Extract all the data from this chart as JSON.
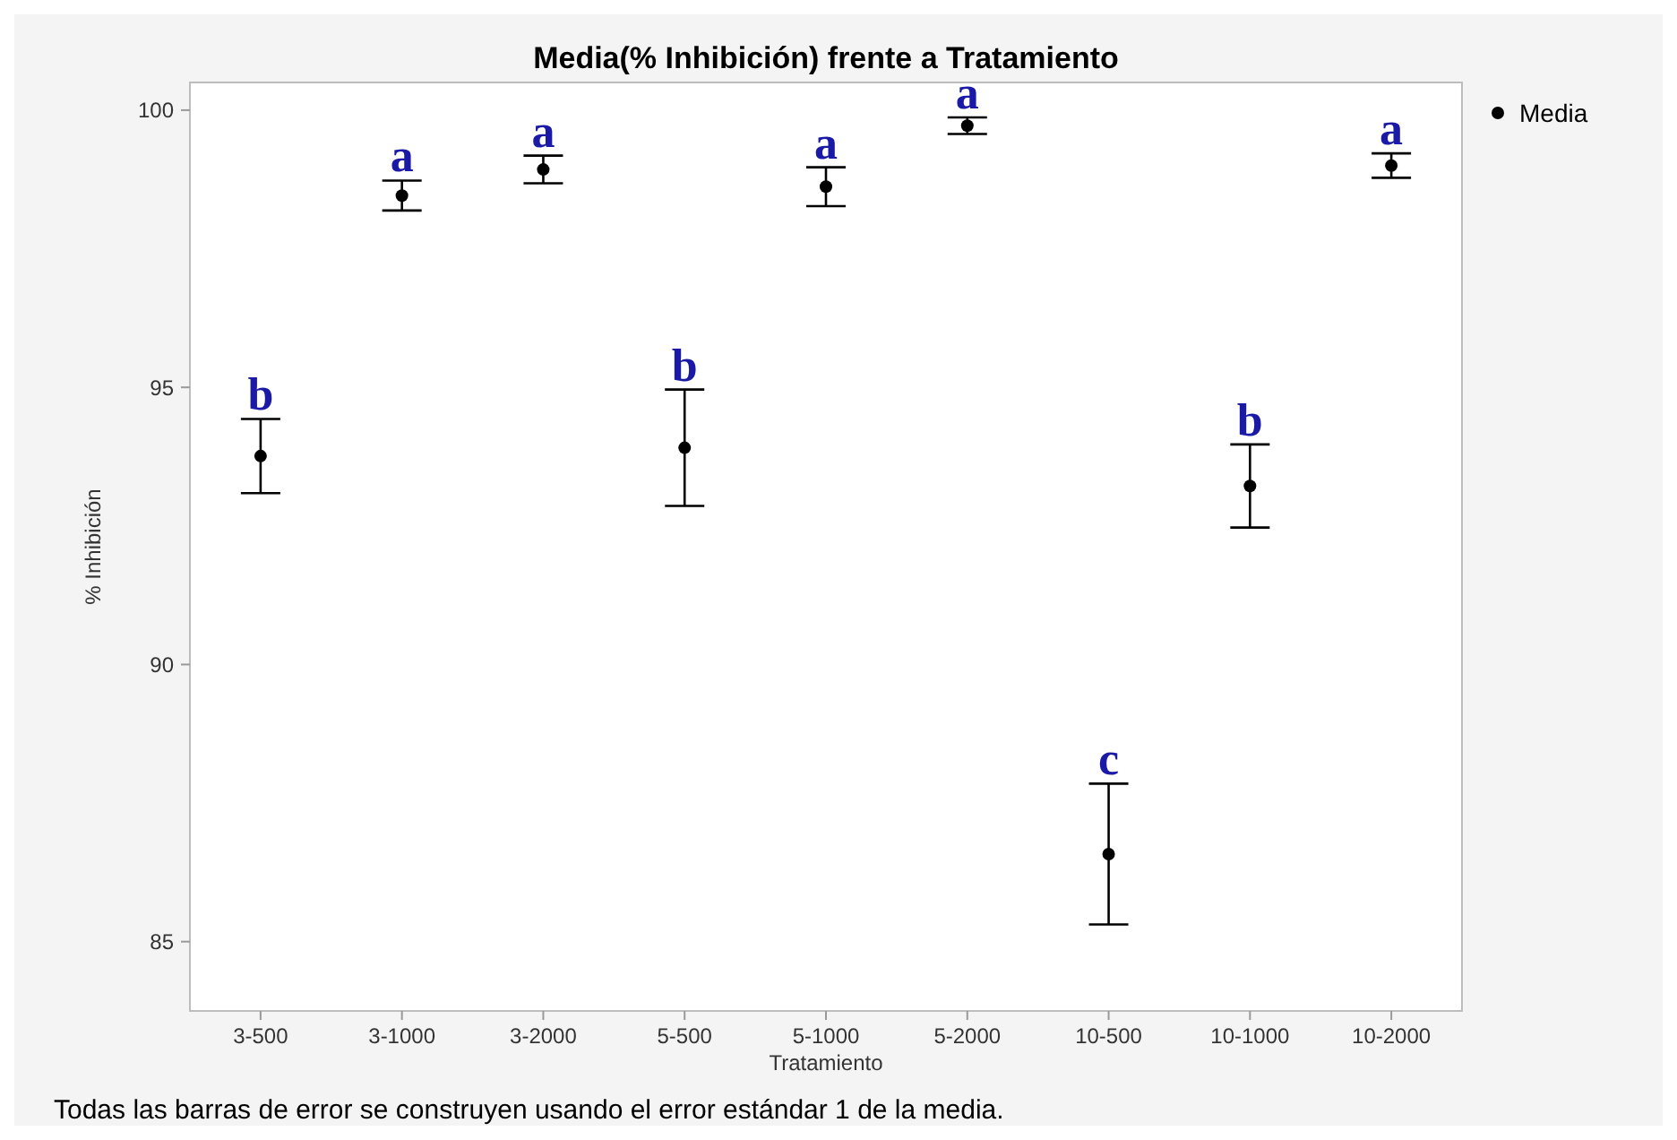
{
  "chart_data": {
    "type": "scatter",
    "title": "Media(% Inhibición) frente a Tratamiento",
    "xlabel": "Tratamiento",
    "ylabel": "% Inhibición",
    "categories": [
      "3-500",
      "3-1000",
      "3-2000",
      "5-500",
      "5-1000",
      "5-2000",
      "10-500",
      "10-1000",
      "10-2000"
    ],
    "series": [
      {
        "name": "Media",
        "color": "#000000",
        "values": [
          93.76,
          98.46,
          98.93,
          93.91,
          98.62,
          99.72,
          86.58,
          93.22,
          99.0
        ],
        "errors": [
          0.67,
          0.27,
          0.25,
          1.05,
          0.35,
          0.15,
          1.27,
          0.75,
          0.22
        ]
      }
    ],
    "ylim": [
      83.75,
      100.5
    ],
    "yticks": [
      85,
      90,
      95,
      100
    ],
    "grid": false,
    "legend": "top right",
    "marker": "circle",
    "annotations": [
      {
        "text": "b",
        "x": "3-500",
        "y": 94.43
      },
      {
        "text": "a",
        "x": "3-1000",
        "y": 98.73
      },
      {
        "text": "a",
        "x": "3-2000",
        "y": 99.18
      },
      {
        "text": "b",
        "x": "5-500",
        "y": 94.96
      },
      {
        "text": "a",
        "x": "5-1000",
        "y": 98.97
      },
      {
        "text": "a",
        "x": "5-2000",
        "y": 99.87
      },
      {
        "text": "c",
        "x": "10-500",
        "y": 87.85
      },
      {
        "text": "b",
        "x": "10-1000",
        "y": 93.97
      },
      {
        "text": "a",
        "x": "10-2000",
        "y": 99.22
      },
      "Todas las barras de error se construyen usando el error estándar 1 de la media."
    ]
  }
}
